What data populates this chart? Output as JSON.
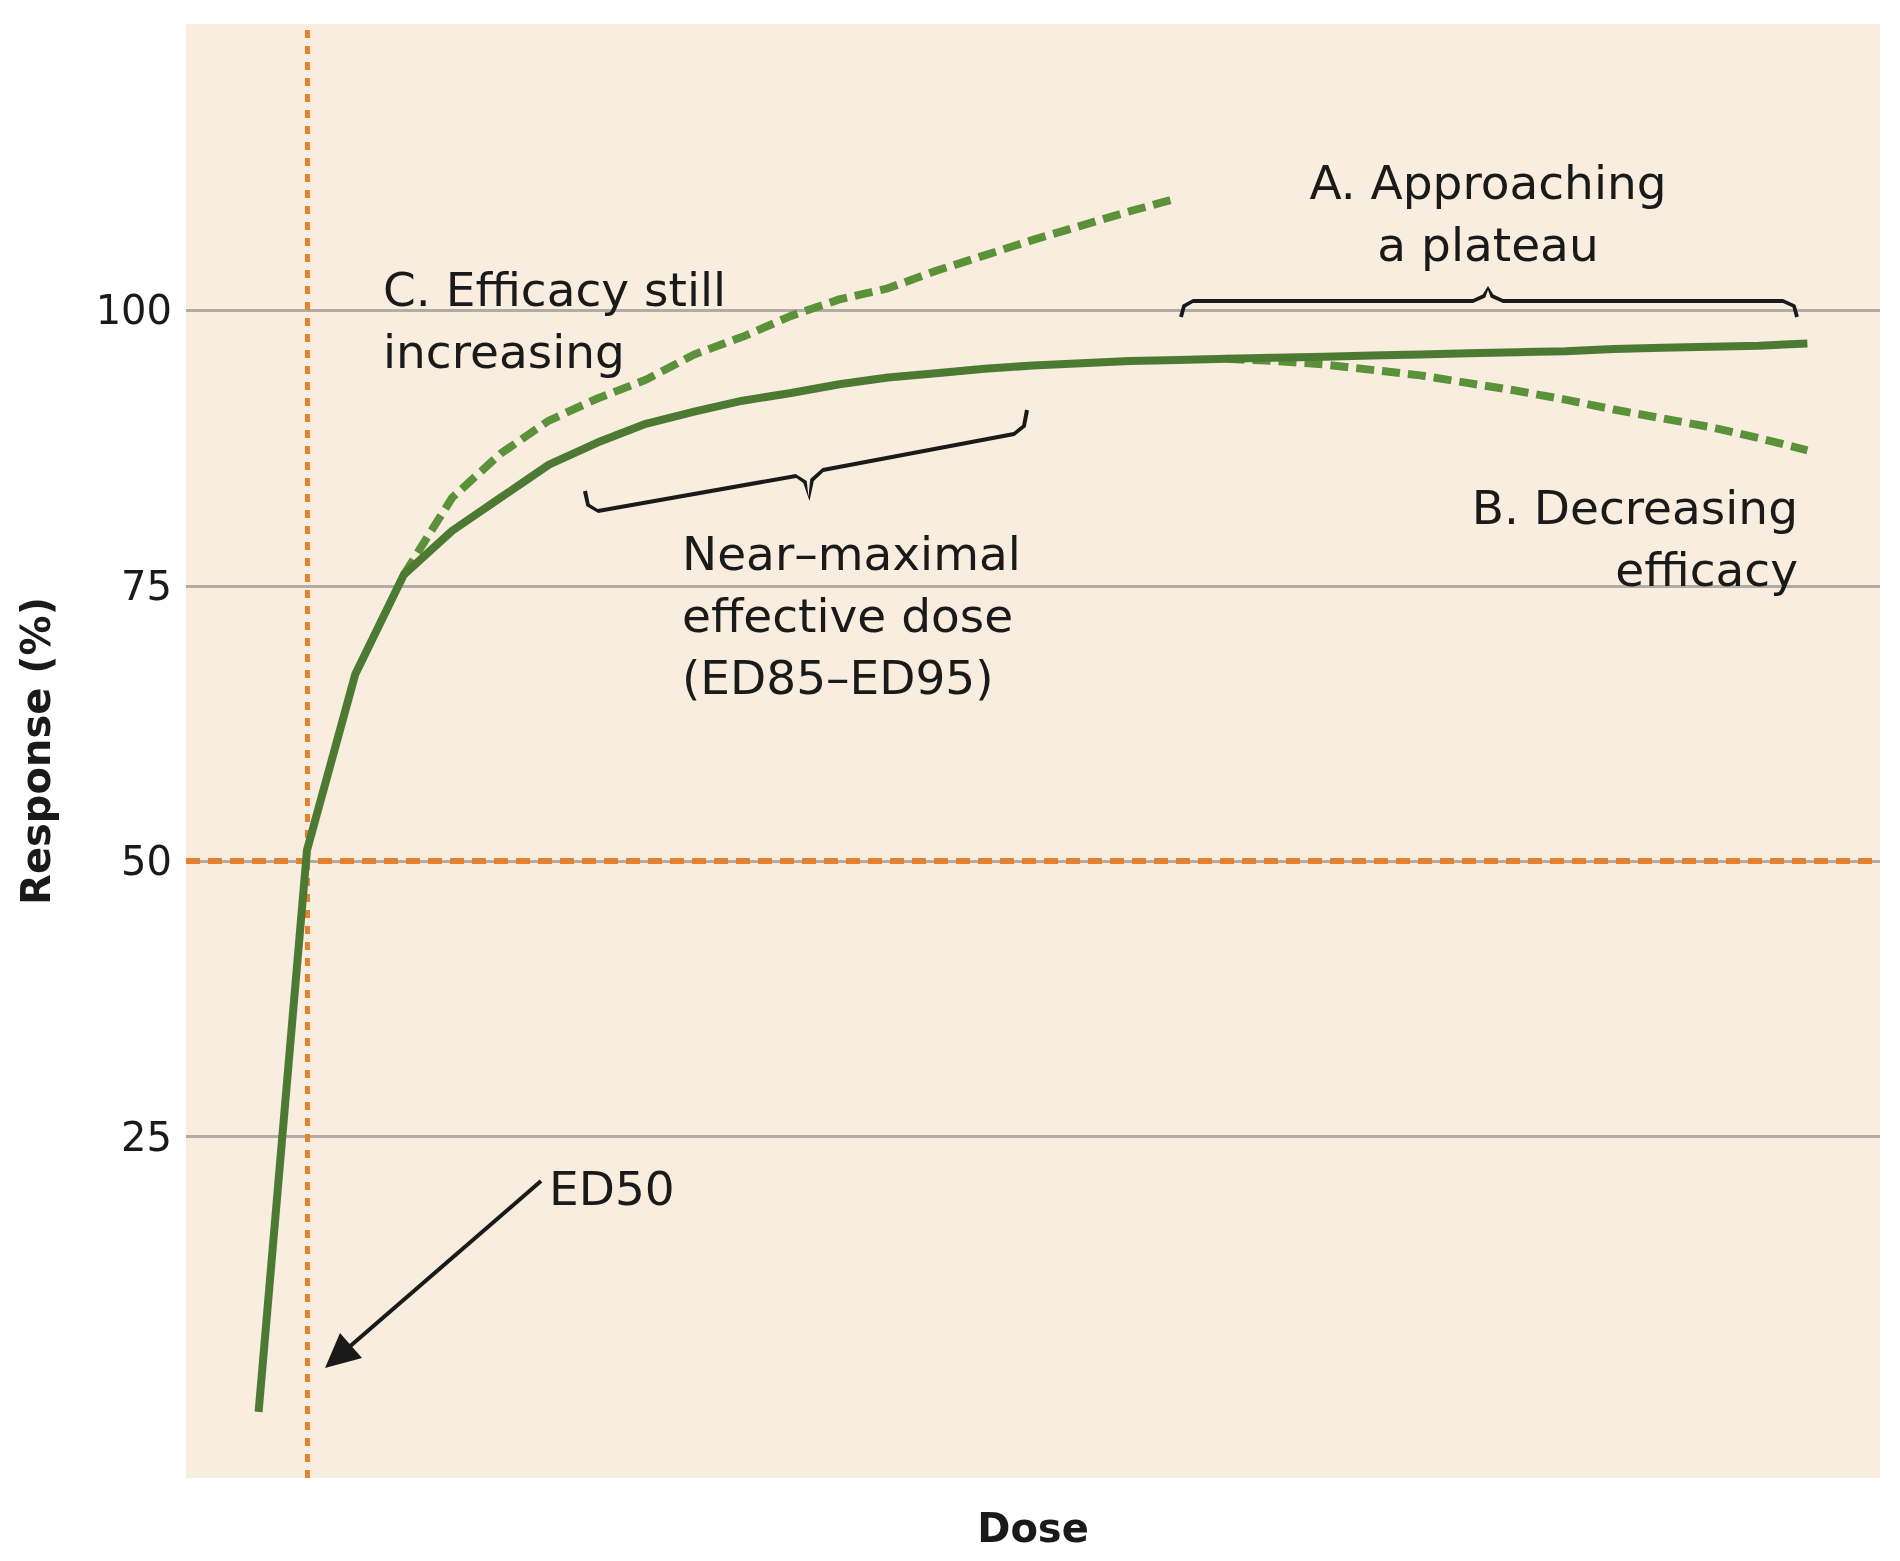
{
  "chart_data": {
    "type": "line",
    "xlabel": "Dose",
    "ylabel": "Response (%)",
    "categories": [
      null,
      null,
      null,
      null,
      null,
      null,
      null,
      null,
      null,
      null,
      null,
      null,
      null,
      null,
      null,
      null,
      null,
      null,
      null,
      null,
      null,
      null,
      null,
      null,
      null,
      null,
      null,
      null,
      null,
      null,
      null,
      null,
      null,
      null,
      null
    ],
    "series": [
      {
        "color": "#4d7a32",
        "line_style": "solid",
        "values": [
          null,
          0,
          51,
          67,
          76,
          80,
          83,
          86,
          88,
          89.7,
          90.8,
          91.8,
          92.5,
          93.3,
          93.9,
          94.3,
          94.7,
          95,
          95.2,
          95.4,
          95.5,
          95.6,
          95.7,
          95.8,
          95.9,
          96,
          96.1,
          96.2,
          96.3,
          96.5,
          96.6,
          96.7,
          96.8,
          97,
          null
        ]
      },
      {
        "color": "#5b9239",
        "line_style": "dashed",
        "values": [
          null,
          null,
          null,
          null,
          76,
          83,
          87,
          90,
          92,
          93.7,
          96,
          97.6,
          99.5,
          101,
          102,
          103.6,
          105,
          106.4,
          107.7,
          109,
          110.2,
          null,
          null,
          null,
          null,
          null,
          null,
          null,
          null,
          null,
          null,
          null,
          null,
          null,
          null
        ]
      },
      {
        "color": "#5b9239",
        "line_style": "dashed",
        "values": [
          null,
          null,
          null,
          null,
          null,
          null,
          null,
          null,
          null,
          null,
          null,
          null,
          null,
          null,
          null,
          null,
          null,
          null,
          null,
          null,
          null,
          95.6,
          95.4,
          95.1,
          94.6,
          94.1,
          93.4,
          92.7,
          91.9,
          91,
          90.2,
          89.4,
          88.4,
          87.3,
          null
        ]
      }
    ],
    "ylim": [
      -6,
      126
    ],
    "yticks": [
      25,
      50,
      75,
      100
    ],
    "grid": "y",
    "marker": "none",
    "tick_labels": "y",
    "ref_lines": [
      {
        "axis": "y",
        "value": 50,
        "color": "#e5812f",
        "line_style": "dotted"
      }
    ],
    "annotations": [
      "A. Approaching\na plateau",
      "B. Decreasing\nefficacy",
      "C. Efficacy still\nincreasing",
      "Near–maximal\neffective dose\n(ED85–ED95)",
      "ED50"
    ]
  }
}
